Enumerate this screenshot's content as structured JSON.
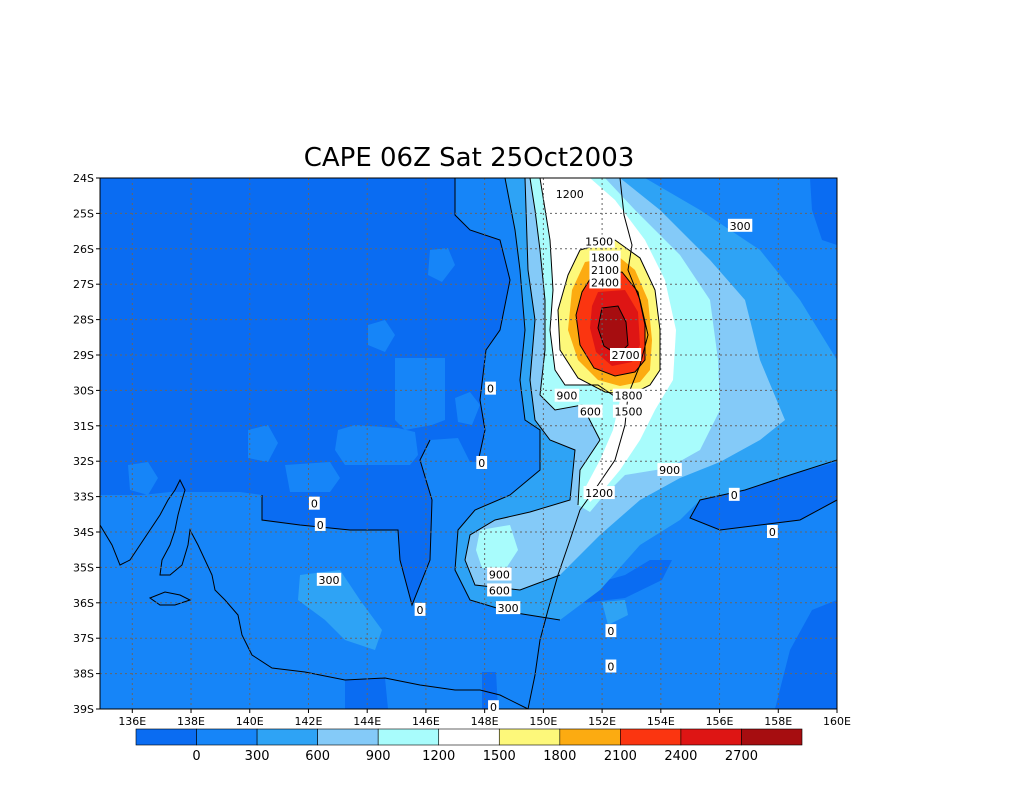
{
  "title": "CAPE 06Z Sat 25Oct2003",
  "lat_labels": [
    "24S",
    "25S",
    "26S",
    "27S",
    "28S",
    "29S",
    "30S",
    "31S",
    "32S",
    "33S",
    "34S",
    "35S",
    "36S",
    "37S",
    "38S",
    "39S"
  ],
  "lon_labels": [
    "136E",
    "138E",
    "140E",
    "142E",
    "144E",
    "146E",
    "148E",
    "150E",
    "152E",
    "154E",
    "156E",
    "158E",
    "160E"
  ],
  "contour_labels": [
    {
      "text": "1200",
      "lon": 150.9,
      "lat": -24.45
    },
    {
      "text": "300",
      "lon": 156.7,
      "lat": -25.35
    },
    {
      "text": "1500",
      "lon": 151.9,
      "lat": -25.8
    },
    {
      "text": "1800",
      "lon": 152.1,
      "lat": -26.25
    },
    {
      "text": "2100",
      "lon": 152.1,
      "lat": -26.6
    },
    {
      "text": "2400",
      "lon": 152.1,
      "lat": -26.95
    },
    {
      "text": "2700",
      "lon": 152.8,
      "lat": -29.0
    },
    {
      "text": "0",
      "lon": 148.2,
      "lat": -29.95
    },
    {
      "text": "900",
      "lon": 150.8,
      "lat": -30.15
    },
    {
      "text": "1800",
      "lon": 152.9,
      "lat": -30.15
    },
    {
      "text": "600",
      "lon": 151.6,
      "lat": -30.6
    },
    {
      "text": "1500",
      "lon": 152.9,
      "lat": -30.6
    },
    {
      "text": "0",
      "lon": 147.9,
      "lat": -32.05
    },
    {
      "text": "900",
      "lon": 154.3,
      "lat": -32.25
    },
    {
      "text": "1200",
      "lon": 151.9,
      "lat": -32.9
    },
    {
      "text": "0",
      "lon": 156.5,
      "lat": -32.95
    },
    {
      "text": "0",
      "lon": 142.2,
      "lat": -33.2
    },
    {
      "text": "0",
      "lon": 142.4,
      "lat": -33.8
    },
    {
      "text": "0",
      "lon": 157.8,
      "lat": -34.0
    },
    {
      "text": "900",
      "lon": 148.5,
      "lat": -35.2
    },
    {
      "text": "600",
      "lon": 148.5,
      "lat": -35.65
    },
    {
      "text": "300",
      "lon": 142.7,
      "lat": -35.35
    },
    {
      "text": "0",
      "lon": 145.8,
      "lat": -36.2
    },
    {
      "text": "300",
      "lon": 148.8,
      "lat": -36.15
    },
    {
      "text": "0",
      "lon": 152.3,
      "lat": -36.8
    },
    {
      "text": "0",
      "lon": 152.3,
      "lat": -37.8
    },
    {
      "text": "0",
      "lon": 148.3,
      "lat": -38.95
    }
  ],
  "colorbar": {
    "labels": [
      "0",
      "300",
      "600",
      "900",
      "1200",
      "1500",
      "1800",
      "2100",
      "2400",
      "2700"
    ]
  },
  "colors": {
    "c_lt0": "#0a6cf2",
    "c_0": "#1685f8",
    "c_300": "#2ea3f5",
    "c_600": "#84caf8",
    "c_900": "#a8fcfc",
    "c_1200": "#ffffff",
    "c_1500": "#fdf87a",
    "c_1800": "#fcab11",
    "c_2100": "#fb3510",
    "c_2400": "#de1514",
    "c_2700": "#a60d10"
  }
}
